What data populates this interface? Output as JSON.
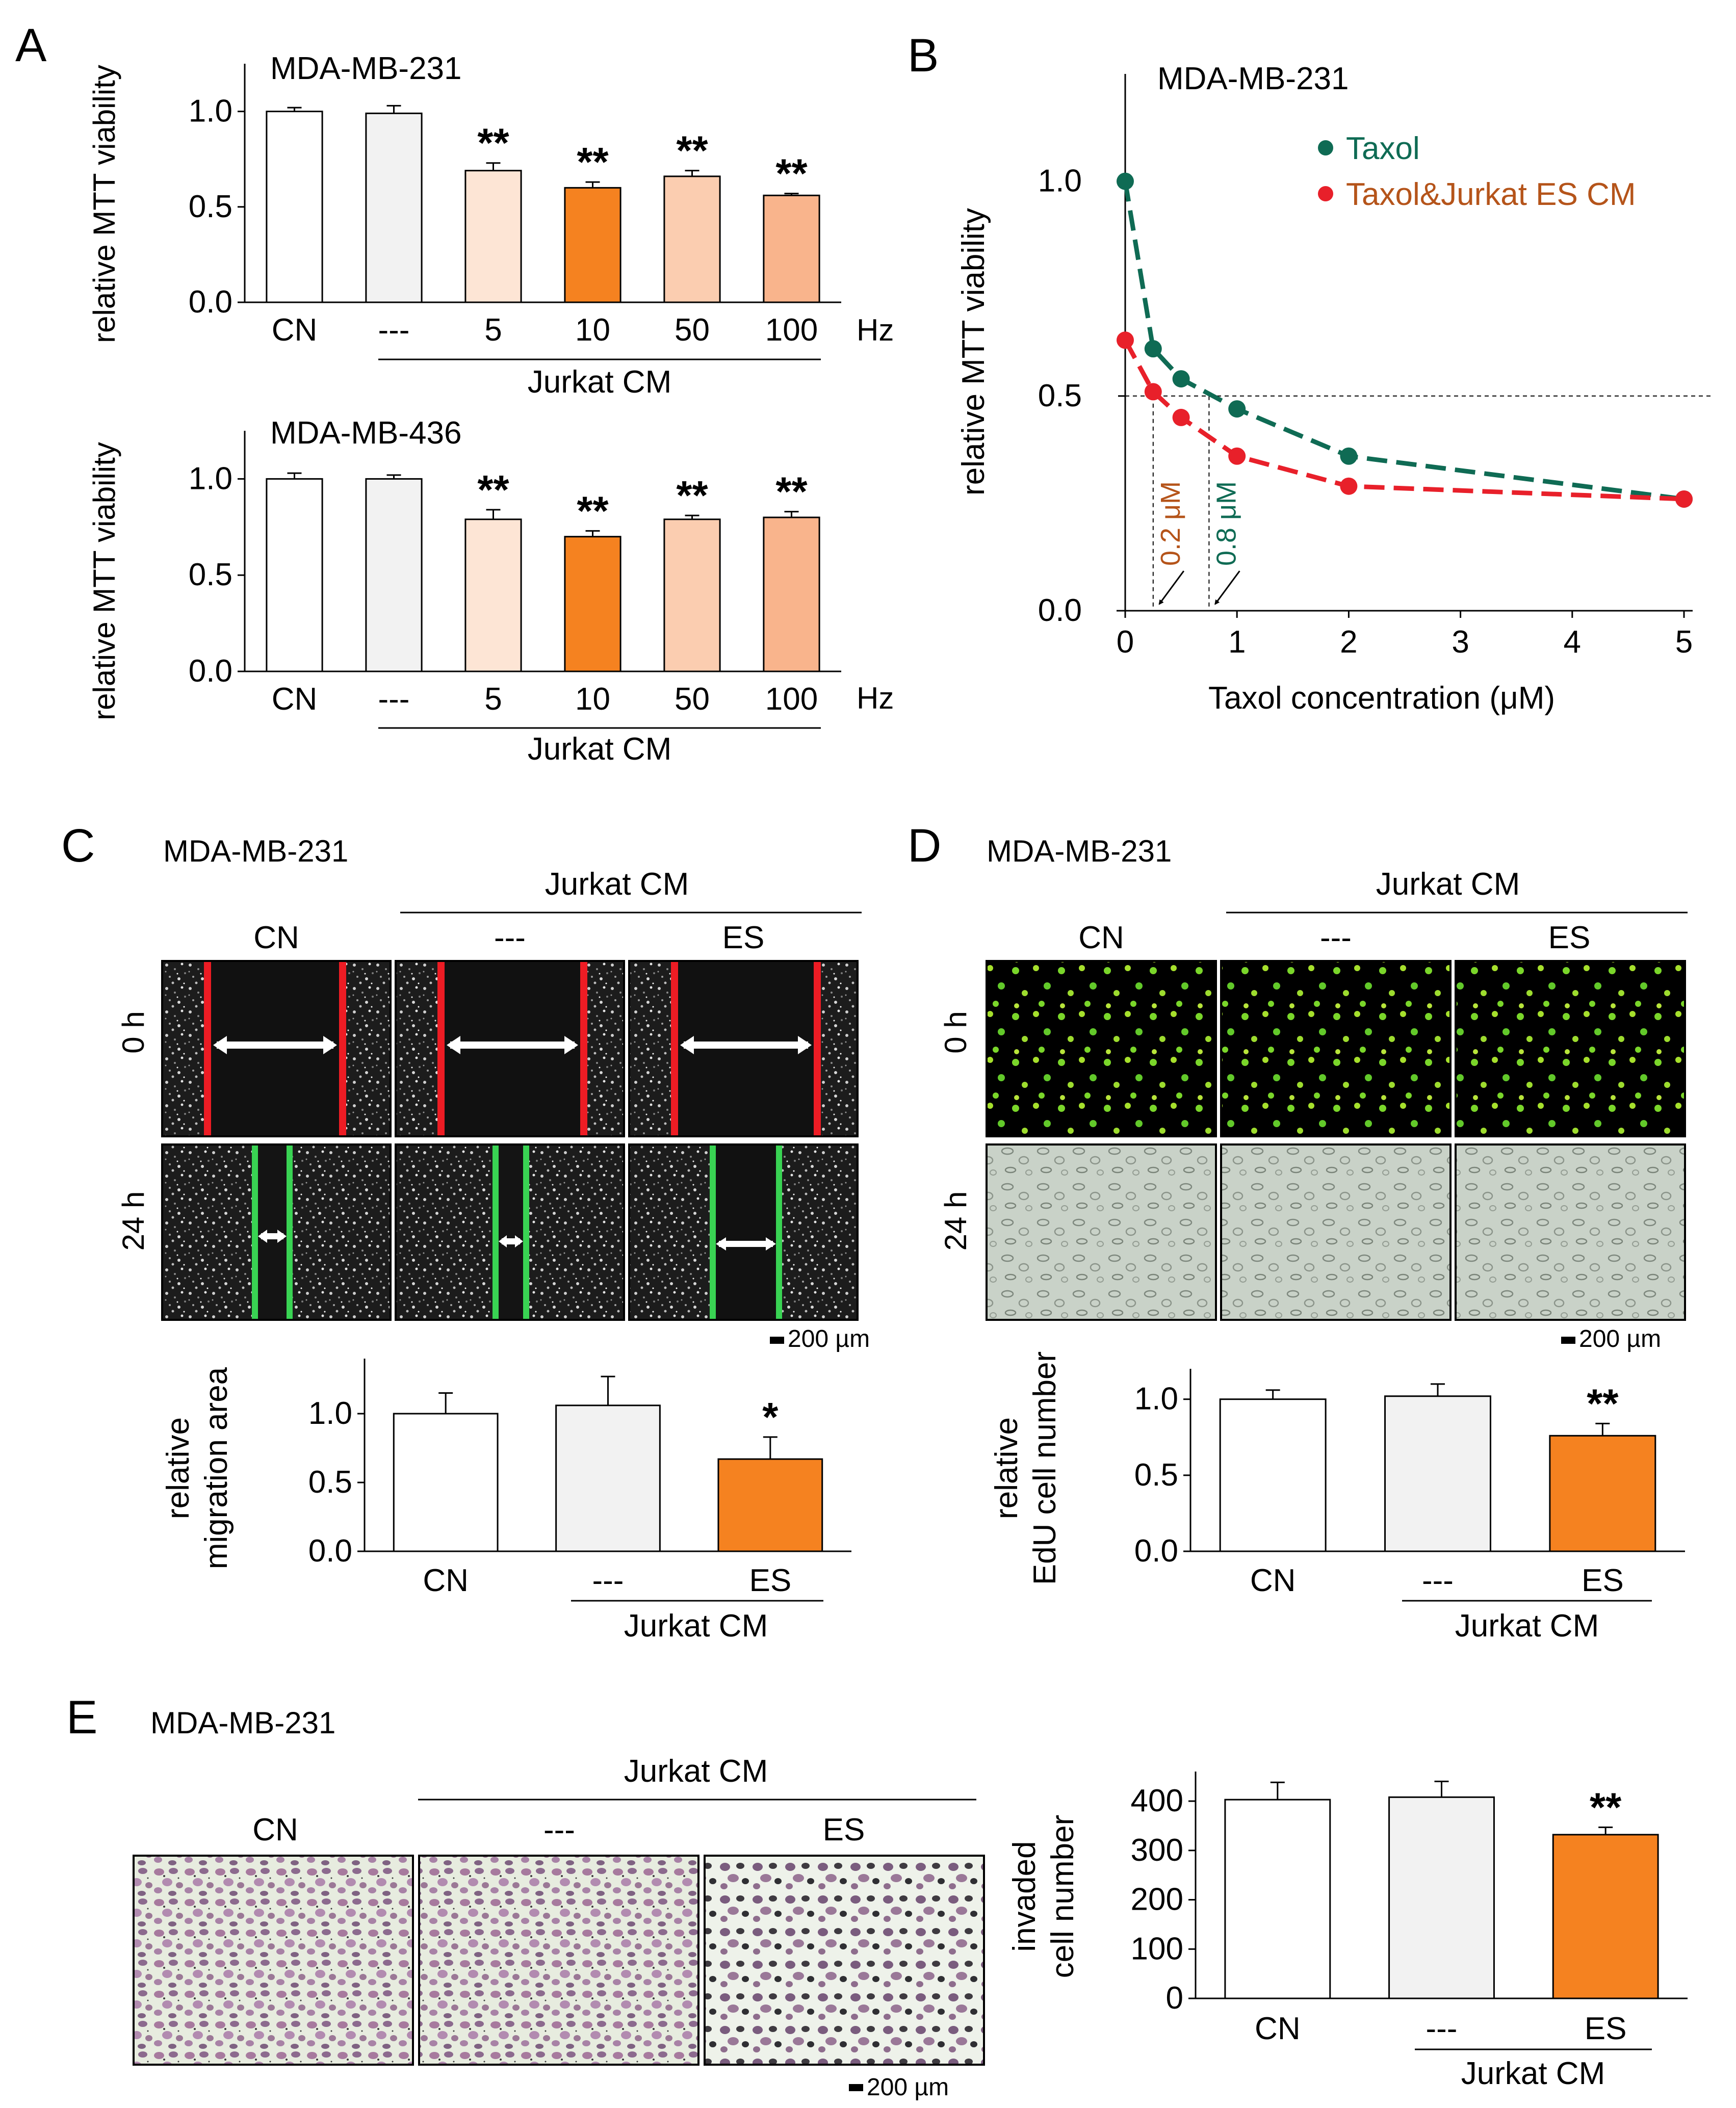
{
  "colors": {
    "white": "#ffffff",
    "light_gray": "#f2f2f2",
    "orange": "#f58220",
    "peach_light": "#fde5d5",
    "peach_mid": "#fbcdb0",
    "peach_dark": "#f9b48c",
    "taxol_green": "#0f6b54",
    "taxol_cm_red": "#e8202a",
    "label_brown": "#b5541a"
  },
  "panels": {
    "A": {
      "letter": "A"
    },
    "B": {
      "letter": "B"
    },
    "C": {
      "letter": "C"
    },
    "D": {
      "letter": "D"
    },
    "E": {
      "letter": "E"
    }
  },
  "micrographs": {
    "C": {
      "title": "MDA-MB-231",
      "group_label": "Jurkat CM",
      "columns": [
        "CN",
        "---",
        "ES"
      ],
      "rows": [
        "0 h",
        "24 h"
      ],
      "scale_bar": "200 µm"
    },
    "D": {
      "title": "MDA-MB-231",
      "group_label": "Jurkat CM",
      "columns": [
        "CN",
        "---",
        "ES"
      ],
      "rows": [
        "0 h",
        "24 h"
      ],
      "scale_bar": "200 µm"
    },
    "E": {
      "title": "MDA-MB-231",
      "group_label": "Jurkat CM",
      "columns": [
        "CN",
        "---",
        "ES"
      ],
      "scale_bar": "200 µm"
    }
  },
  "chart_data": [
    {
      "id": "A1",
      "type": "bar",
      "title": "MDA-MB-231",
      "ylabel": "relative MTT viability",
      "categories": [
        "CN",
        "---",
        "5",
        "10",
        "50",
        "100"
      ],
      "unit_label": "Hz",
      "group_label": "Jurkat CM",
      "values": [
        1.0,
        0.99,
        0.69,
        0.6,
        0.66,
        0.56
      ],
      "errors": [
        0.02,
        0.04,
        0.04,
        0.03,
        0.03,
        0.01
      ],
      "significance": [
        "",
        "",
        "**",
        "**",
        "**",
        "**"
      ],
      "bar_colors": [
        "#ffffff",
        "#f2f2f2",
        "#fde5d5",
        "#f58220",
        "#fbcdb0",
        "#f9b48c"
      ],
      "ylim": [
        0,
        1.25
      ],
      "yticks": [
        0,
        0.5,
        1.0
      ],
      "ytick_labels": [
        "0.0",
        "0.5",
        "1.0"
      ]
    },
    {
      "id": "A2",
      "type": "bar",
      "title": "MDA-MB-436",
      "ylabel": "relative MTT viability",
      "categories": [
        "CN",
        "---",
        "5",
        "10",
        "50",
        "100"
      ],
      "unit_label": "Hz",
      "group_label": "Jurkat CM",
      "values": [
        1.0,
        1.0,
        0.79,
        0.7,
        0.79,
        0.8
      ],
      "errors": [
        0.03,
        0.02,
        0.05,
        0.03,
        0.02,
        0.03
      ],
      "significance": [
        "",
        "",
        "**",
        "**",
        "**",
        "**"
      ],
      "bar_colors": [
        "#ffffff",
        "#f2f2f2",
        "#fde5d5",
        "#f58220",
        "#fbcdb0",
        "#f9b48c"
      ],
      "ylim": [
        0,
        1.25
      ],
      "yticks": [
        0,
        0.5,
        1.0
      ],
      "ytick_labels": [
        "0.0",
        "0.5",
        "1.0"
      ]
    },
    {
      "id": "B",
      "type": "line",
      "title": "MDA-MB-231",
      "xlabel": "Taxol concentration (μM)",
      "ylabel": "relative MTT viability",
      "xlim": [
        0,
        5
      ],
      "ylim": [
        0,
        1.25
      ],
      "xticks": [
        0,
        1,
        2,
        3,
        4,
        5
      ],
      "yticks": [
        0,
        0.5,
        1.0
      ],
      "ytick_labels": [
        "0.0",
        "0.5",
        "1.0"
      ],
      "series": [
        {
          "name": "Taxol",
          "color": "#0f6b54",
          "x": [
            0,
            0.25,
            0.5,
            1,
            2,
            5
          ],
          "y": [
            1.0,
            0.61,
            0.54,
            0.47,
            0.36,
            0.26
          ]
        },
        {
          "name": "Taxol&Jurkat ES CM",
          "color": "#e8202a",
          "x": [
            0,
            0.25,
            0.5,
            1,
            2,
            5
          ],
          "y": [
            0.63,
            0.51,
            0.45,
            0.36,
            0.29,
            0.26
          ]
        }
      ],
      "reference_line_y": 0.5,
      "annotations": [
        {
          "text": "0.2 μM",
          "x": 0.25,
          "color": "#b5541a"
        },
        {
          "text": "0.8 μM",
          "x": 0.75,
          "color": "#0f6b54"
        }
      ]
    },
    {
      "id": "C",
      "type": "bar",
      "ylabel": "relative migration area",
      "ylabel_lines": [
        "relative",
        "migration area"
      ],
      "categories": [
        "CN",
        "---",
        "ES"
      ],
      "group_label": "Jurkat CM",
      "values": [
        1.0,
        1.06,
        0.67
      ],
      "errors": [
        0.15,
        0.21,
        0.16
      ],
      "significance": [
        "",
        "",
        "*"
      ],
      "bar_colors": [
        "#ffffff",
        "#f2f2f2",
        "#f58220"
      ],
      "ylim": [
        0,
        1.4
      ],
      "yticks": [
        0,
        0.5,
        1.0
      ],
      "ytick_labels": [
        "0.0",
        "0.5",
        "1.0"
      ]
    },
    {
      "id": "D",
      "type": "bar",
      "ylabel": "relative EdU cell number",
      "ylabel_lines": [
        "relative",
        "EdU cell number"
      ],
      "categories": [
        "CN",
        "---",
        "ES"
      ],
      "group_label": "Jurkat CM",
      "values": [
        1.0,
        1.02,
        0.76
      ],
      "errors": [
        0.06,
        0.08,
        0.08
      ],
      "significance": [
        "",
        "",
        "**"
      ],
      "bar_colors": [
        "#ffffff",
        "#f2f2f2",
        "#f58220"
      ],
      "ylim": [
        0,
        1.2
      ],
      "yticks": [
        0,
        0.5,
        1.0
      ],
      "ytick_labels": [
        "0.0",
        "0.5",
        "1.0"
      ]
    },
    {
      "id": "E",
      "type": "bar",
      "ylabel": "invaded cell number",
      "ylabel_lines": [
        "invaded",
        "cell number"
      ],
      "categories": [
        "CN",
        "---",
        "ES"
      ],
      "group_label": "Jurkat CM",
      "values": [
        403,
        408,
        332
      ],
      "errors": [
        35,
        32,
        15
      ],
      "significance": [
        "",
        "",
        "**"
      ],
      "bar_colors": [
        "#ffffff",
        "#f2f2f2",
        "#f58220"
      ],
      "ylim": [
        0,
        460
      ],
      "yticks": [
        0,
        100,
        200,
        300,
        400
      ],
      "ytick_labels": [
        "0",
        "100",
        "200",
        "300",
        "400"
      ]
    }
  ]
}
